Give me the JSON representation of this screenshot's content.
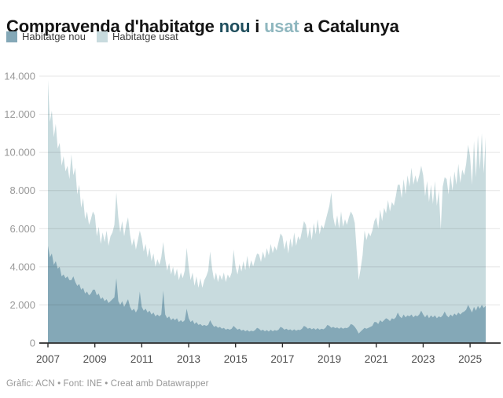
{
  "title": {
    "parts": [
      {
        "text": "Compravenda d'habitatge ",
        "color": "#141414"
      },
      {
        "text": "nou",
        "color": "#1f4e5d"
      },
      {
        "text": " i ",
        "color": "#141414"
      },
      {
        "text": "usat",
        "color": "#8fb7bf"
      },
      {
        "text": " a Catalunya",
        "color": "#141414"
      }
    ]
  },
  "footer": {
    "text": "Gràfic: ACN • Font: INE • Creat amb Datawrapper"
  },
  "colors": {
    "nou_area": "#84a8b7",
    "usat_area": "#c8dbde",
    "grid_line": "rgba(0,0,0,0.10)",
    "axis_line": "#2b2b2b",
    "y_label": "#999999",
    "x_label": "#4d4d4d"
  },
  "chart_data": {
    "type": "area",
    "stacked": true,
    "frequency": "monthly",
    "x_start": "2007-01",
    "x_end": "2025-09",
    "xlabel": "",
    "ylabel": "",
    "ylim": [
      0,
      14000
    ],
    "grid": "horizontal",
    "legend_position": "top-left",
    "x_tick_labels": [
      "2007",
      "2009",
      "2011",
      "2013",
      "2015",
      "2017",
      "2019",
      "2021",
      "2023",
      "2025"
    ],
    "x_tick_years": [
      2007,
      2009,
      2011,
      2013,
      2015,
      2017,
      2019,
      2021,
      2023,
      2025
    ],
    "y_tick_values": [
      0,
      2000,
      4000,
      6000,
      8000,
      10000,
      12000,
      14000
    ],
    "y_tick_labels": [
      "0",
      "2.000",
      "4.000",
      "6.000",
      "8.000",
      "10.000",
      "12.000",
      "14.000"
    ],
    "series": [
      {
        "name": "Habitatge nou",
        "color": "#84a8b7",
        "values": [
          5100,
          4500,
          4700,
          4100,
          4300,
          3900,
          4000,
          3500,
          3600,
          3400,
          3500,
          3300,
          3300,
          3500,
          3200,
          3000,
          3100,
          2800,
          2900,
          2600,
          2700,
          2500,
          2600,
          2800,
          2800,
          2500,
          2600,
          2300,
          2400,
          2200,
          2300,
          2100,
          2200,
          2300,
          2400,
          3400,
          2200,
          2000,
          2200,
          1900,
          2100,
          2300,
          1900,
          1700,
          1800,
          1600,
          1800,
          2700,
          1900,
          1700,
          1800,
          1600,
          1700,
          1500,
          1600,
          1400,
          1500,
          1400,
          1500,
          2750,
          1500,
          1300,
          1400,
          1200,
          1300,
          1200,
          1300,
          1100,
          1200,
          1100,
          1200,
          1800,
          1300,
          1100,
          1200,
          1000,
          1100,
          950,
          1000,
          900,
          950,
          900,
          950,
          1200,
          1000,
          850,
          900,
          800,
          850,
          750,
          800,
          700,
          750,
          700,
          750,
          900,
          800,
          700,
          750,
          650,
          700,
          620,
          680,
          600,
          650,
          620,
          680,
          800,
          750,
          650,
          700,
          620,
          680,
          600,
          700,
          620,
          680,
          650,
          700,
          850,
          800,
          700,
          750,
          680,
          720,
          650,
          720,
          650,
          700,
          680,
          750,
          900,
          850,
          750,
          800,
          720,
          780,
          700,
          780,
          700,
          750,
          720,
          800,
          950,
          900,
          800,
          850,
          780,
          820,
          750,
          820,
          750,
          800,
          780,
          850,
          1000,
          950,
          850,
          700,
          500,
          600,
          700,
          800,
          750,
          800,
          850,
          900,
          1100,
          1100,
          1000,
          1200,
          1100,
          1200,
          1300,
          1250,
          1150,
          1300,
          1250,
          1350,
          1600,
          1400,
          1300,
          1500,
          1350,
          1450,
          1400,
          1500,
          1350,
          1450,
          1400,
          1500,
          1700,
          1500,
          1350,
          1500,
          1300,
          1450,
          1350,
          1450,
          1300,
          1400,
          1350,
          1450,
          1650,
          1450,
          1350,
          1500,
          1400,
          1550,
          1450,
          1600,
          1500,
          1600,
          1650,
          1750,
          2000,
          1800,
          1600,
          1900,
          1700,
          1950,
          1800,
          2000,
          1850,
          1950
        ]
      },
      {
        "name": "Habitatge usat",
        "color": "#c8dbde",
        "values": [
          8700,
          7100,
          7500,
          6700,
          7200,
          6300,
          6500,
          5800,
          6200,
          5600,
          5800,
          5300,
          6600,
          5300,
          6000,
          4800,
          5200,
          4300,
          4700,
          3900,
          4200,
          3700,
          3900,
          4100,
          3900,
          3100,
          3500,
          2900,
          3400,
          3100,
          3600,
          3000,
          3400,
          3500,
          3800,
          4500,
          4400,
          3800,
          4200,
          3700,
          4100,
          4300,
          3800,
          3400,
          3700,
          3300,
          3600,
          3200,
          3600,
          3100,
          3400,
          2900,
          3300,
          2800,
          3100,
          2600,
          2900,
          2700,
          3000,
          2550,
          2900,
          2500,
          2800,
          2400,
          2700,
          2300,
          2600,
          2200,
          2500,
          2300,
          2600,
          3200,
          2700,
          2200,
          2500,
          2000,
          2400,
          1950,
          2400,
          2000,
          2350,
          2600,
          2850,
          3600,
          2900,
          2450,
          2800,
          2400,
          2750,
          2550,
          2900,
          2500,
          2850,
          2700,
          2950,
          4000,
          3200,
          2900,
          3400,
          3100,
          3600,
          3200,
          3900,
          3300,
          3700,
          3400,
          3700,
          3900,
          3900,
          3600,
          4100,
          3800,
          4300,
          4000,
          4500,
          4100,
          4400,
          4200,
          4600,
          4900,
          4800,
          4200,
          4650,
          4020,
          4780,
          4350,
          5080,
          4450,
          4900,
          4720,
          5150,
          5500,
          5350,
          4750,
          5300,
          4680,
          5520,
          5000,
          5720,
          5000,
          5450,
          5280,
          5600,
          5850,
          6300,
          7100,
          5750,
          5320,
          5880,
          5250,
          6080,
          5350,
          5700,
          5420,
          5750,
          5900,
          5750,
          5450,
          4100,
          2800,
          3300,
          3900,
          5100,
          4650,
          5000,
          4750,
          5000,
          5300,
          5500,
          5000,
          5800,
          5300,
          5900,
          5500,
          6250,
          5750,
          6100,
          5950,
          6350,
          6700,
          6900,
          6300,
          7100,
          6450,
          7350,
          6800,
          7700,
          6950,
          7350,
          7000,
          7300,
          7600,
          7300,
          6350,
          7000,
          6100,
          6850,
          5950,
          7050,
          5900,
          6600,
          4600,
          6750,
          7050,
          7150,
          6450,
          7300,
          6600,
          7450,
          6850,
          7800,
          6900,
          7500,
          7150,
          7650,
          8400,
          8000,
          6700,
          8700,
          7000,
          8950,
          7300,
          9000,
          7050,
          8850
        ]
      }
    ]
  }
}
